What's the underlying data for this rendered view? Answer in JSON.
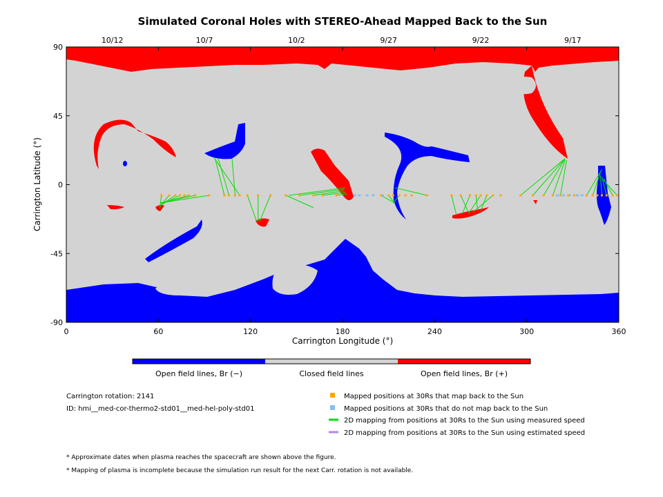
{
  "chart_data": {
    "type": "scatter",
    "title": "Simulated Coronal Holes with STEREO-Ahead Mapped Back to the Sun",
    "xlabel": "Carrington Longitude (°)",
    "ylabel": "Carrington Latitude (°)",
    "xlim": [
      0,
      360
    ],
    "ylim": [
      -90,
      90
    ],
    "xticks": [
      0,
      60,
      120,
      180,
      240,
      300,
      360
    ],
    "yticks": [
      -90,
      -45,
      0,
      45,
      90
    ],
    "top_axis": {
      "ticks": [
        {
          "label": "10/12",
          "lon": 30
        },
        {
          "label": "10/7",
          "lon": 90
        },
        {
          "label": "10/2",
          "lon": 150
        },
        {
          "label": "9/27",
          "lon": 210
        },
        {
          "label": "9/22",
          "lon": 270
        },
        {
          "label": "9/17",
          "lon": 330
        }
      ]
    },
    "colors": {
      "open_negative": "#0000ff",
      "closed": "#d3d3d3",
      "open_positive": "#ff0000",
      "mapped_dot": "#ffa500",
      "unmapped_dot": "#87bdf0",
      "measured_line": "#00dd00",
      "estimated_line": "#b386e6"
    },
    "colorbar": [
      "Open field lines, Br (−)",
      "Closed field lines",
      "Open field lines, Br (+)"
    ],
    "info": {
      "rotation": "Carrington rotation: 2141",
      "id": "ID: hmi__med-cor-thermo2-std01__med-hel-poly-std01"
    },
    "legend": [
      {
        "label": "Mapped positions at 30Rs that map back to the Sun",
        "kind": "square",
        "color": "#ffa500"
      },
      {
        "label": "Mapped positions at 30Rs that do not map back to the Sun",
        "kind": "square",
        "color": "#87bdf0"
      },
      {
        "label": "2D mapping from positions at 30Rs to the Sun using measured speed",
        "kind": "line",
        "color": "#00dd00"
      },
      {
        "label": "2D mapping from positions at 30Rs to the Sun using estimated speed",
        "kind": "line",
        "color": "#b386e6"
      }
    ],
    "footnotes": [
      "* Approximate dates when plasma reaches the spacecraft are shown above the figure.",
      "* Mapping of plasma is incomplete because the simulation run result for the next Carr. rotation is not available."
    ],
    "mapped_points": [
      {
        "lon": 62,
        "lat": -7
      },
      {
        "lon": 67,
        "lat": -7
      },
      {
        "lon": 71,
        "lat": -7
      },
      {
        "lon": 74,
        "lat": -7
      },
      {
        "lon": 77,
        "lat": -7
      },
      {
        "lon": 80,
        "lat": -7
      },
      {
        "lon": 84,
        "lat": -7
      },
      {
        "lon": 93,
        "lat": -7
      },
      {
        "lon": 103,
        "lat": -7
      },
      {
        "lon": 106,
        "lat": -7
      },
      {
        "lon": 110,
        "lat": -7
      },
      {
        "lon": 113,
        "lat": -7
      },
      {
        "lon": 118,
        "lat": -7
      },
      {
        "lon": 125,
        "lat": -7
      },
      {
        "lon": 133,
        "lat": -7
      },
      {
        "lon": 143,
        "lat": -7
      },
      {
        "lon": 152,
        "lat": -7
      },
      {
        "lon": 161,
        "lat": -7
      },
      {
        "lon": 167,
        "lat": -7
      },
      {
        "lon": 176,
        "lat": -7
      },
      {
        "lon": 205,
        "lat": -7
      },
      {
        "lon": 210,
        "lat": -7
      },
      {
        "lon": 213,
        "lat": -7
      },
      {
        "lon": 217,
        "lat": -7
      },
      {
        "lon": 221,
        "lat": -7
      },
      {
        "lon": 225,
        "lat": -7
      },
      {
        "lon": 235,
        "lat": -7
      },
      {
        "lon": 251,
        "lat": -7
      },
      {
        "lon": 257,
        "lat": -7
      },
      {
        "lon": 263,
        "lat": -7
      },
      {
        "lon": 267,
        "lat": -7
      },
      {
        "lon": 270,
        "lat": -7
      },
      {
        "lon": 274,
        "lat": -7
      },
      {
        "lon": 278,
        "lat": -7
      },
      {
        "lon": 283,
        "lat": -7
      },
      {
        "lon": 296,
        "lat": -7
      },
      {
        "lon": 304,
        "lat": -7
      },
      {
        "lon": 311,
        "lat": -7
      },
      {
        "lon": 317,
        "lat": -7
      },
      {
        "lon": 322,
        "lat": -7
      },
      {
        "lon": 327,
        "lat": -7
      },
      {
        "lon": 331,
        "lat": -7
      },
      {
        "lon": 339,
        "lat": -7
      },
      {
        "lon": 343,
        "lat": -7
      },
      {
        "lon": 346,
        "lat": -7
      },
      {
        "lon": 349,
        "lat": -7
      },
      {
        "lon": 352,
        "lat": -7
      },
      {
        "lon": 356,
        "lat": -7
      },
      {
        "lon": 359,
        "lat": -7
      }
    ],
    "unmapped_points": [
      {
        "lon": 188,
        "lat": -7
      },
      {
        "lon": 191,
        "lat": -7
      },
      {
        "lon": 196,
        "lat": -7
      },
      {
        "lon": 200,
        "lat": -7
      },
      {
        "lon": 206,
        "lat": -7
      },
      {
        "lon": 320,
        "lat": -7
      },
      {
        "lon": 324,
        "lat": -7
      },
      {
        "lon": 328,
        "lat": -7
      },
      {
        "lon": 333,
        "lat": -7
      },
      {
        "lon": 336,
        "lat": -7
      }
    ],
    "mapping_lines": [
      {
        "from": [
          62,
          -7
        ],
        "to": [
          61,
          -15
        ]
      },
      {
        "from": [
          67,
          -7
        ],
        "to": [
          61,
          -14
        ]
      },
      {
        "from": [
          71,
          -7
        ],
        "to": [
          62,
          -13
        ]
      },
      {
        "from": [
          74,
          -7
        ],
        "to": [
          62,
          -13
        ]
      },
      {
        "from": [
          80,
          -7
        ],
        "to": [
          62,
          -12
        ]
      },
      {
        "from": [
          84,
          -7
        ],
        "to": [
          61,
          -12
        ]
      },
      {
        "from": [
          93,
          -7
        ],
        "to": [
          61,
          -12
        ]
      },
      {
        "from": [
          103,
          -7
        ],
        "to": [
          97,
          17
        ]
      },
      {
        "from": [
          106,
          -7
        ],
        "to": [
          99,
          17
        ]
      },
      {
        "from": [
          110,
          -7
        ],
        "to": [
          108,
          17
        ]
      },
      {
        "from": [
          113,
          -7
        ],
        "to": [
          96,
          18
        ]
      },
      {
        "from": [
          118,
          -7
        ],
        "to": [
          124,
          -24
        ]
      },
      {
        "from": [
          125,
          -7
        ],
        "to": [
          125,
          -24
        ]
      },
      {
        "from": [
          133,
          -7
        ],
        "to": [
          126,
          -24
        ]
      },
      {
        "from": [
          143,
          -7
        ],
        "to": [
          161,
          -15
        ]
      },
      {
        "from": [
          152,
          -7
        ],
        "to": [
          181,
          -3
        ]
      },
      {
        "from": [
          161,
          -7
        ],
        "to": [
          181,
          -4
        ]
      },
      {
        "from": [
          167,
          -7
        ],
        "to": [
          182,
          -5
        ]
      },
      {
        "from": [
          176,
          -7
        ],
        "to": [
          183,
          -6
        ]
      },
      {
        "from": [
          145,
          -7
        ],
        "to": [
          182,
          -2
        ]
      },
      {
        "from": [
          205,
          -7
        ],
        "to": [
          214,
          -12
        ]
      },
      {
        "from": [
          210,
          -7
        ],
        "to": [
          214,
          -12
        ]
      },
      {
        "from": [
          217,
          -7
        ],
        "to": [
          213,
          -12
        ]
      },
      {
        "from": [
          235,
          -7
        ],
        "to": [
          214,
          -2
        ]
      },
      {
        "from": [
          251,
          -7
        ],
        "to": [
          254,
          -19
        ]
      },
      {
        "from": [
          257,
          -7
        ],
        "to": [
          262,
          -18
        ]
      },
      {
        "from": [
          263,
          -7
        ],
        "to": [
          258,
          -19
        ]
      },
      {
        "from": [
          267,
          -7
        ],
        "to": [
          268,
          -17
        ]
      },
      {
        "from": [
          270,
          -7
        ],
        "to": [
          262,
          -19
        ]
      },
      {
        "from": [
          274,
          -7
        ],
        "to": [
          270,
          -17
        ]
      },
      {
        "from": [
          278,
          -7
        ],
        "to": [
          265,
          -18
        ]
      },
      {
        "from": [
          296,
          -7
        ],
        "to": [
          325,
          17
        ]
      },
      {
        "from": [
          304,
          -7
        ],
        "to": [
          325,
          17
        ]
      },
      {
        "from": [
          311,
          -7
        ],
        "to": [
          325,
          17
        ]
      },
      {
        "from": [
          317,
          -7
        ],
        "to": [
          325,
          16
        ]
      },
      {
        "from": [
          322,
          -7
        ],
        "to": [
          326,
          16
        ]
      },
      {
        "from": [
          339,
          -7
        ],
        "to": [
          349,
          10
        ]
      },
      {
        "from": [
          343,
          -7
        ],
        "to": [
          348,
          8
        ]
      },
      {
        "from": [
          349,
          -7
        ],
        "to": [
          348,
          6
        ]
      },
      {
        "from": [
          352,
          -7
        ],
        "to": [
          349,
          5
        ]
      },
      {
        "from": [
          356,
          -7
        ],
        "to": [
          350,
          4
        ]
      },
      {
        "from": [
          359,
          -7
        ],
        "to": [
          350,
          3
        ]
      }
    ]
  }
}
